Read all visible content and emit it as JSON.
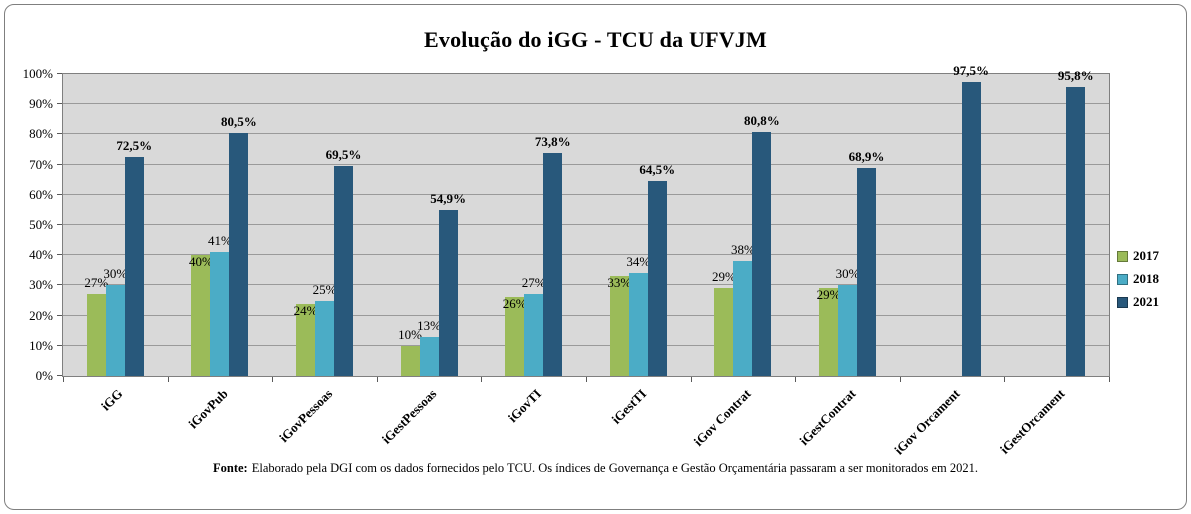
{
  "title": "Evolução do iGG - TCU da UFVJM",
  "footer": {
    "label": "Fonte:",
    "text": "Elaborado pela DGI com os dados fornecidos pelo TCU. Os índices de Governança e Gestão Orçamentária passaram a ser monitorados em 2021."
  },
  "colors": {
    "series_2017": "#9BBB59",
    "series_2018": "#4BACC6",
    "series_2021": "#28587B",
    "plot_bg": "#D9D9D9",
    "gridline": "#9A9A9A",
    "frame_border": "#7F7F7F"
  },
  "chart_data": {
    "type": "bar",
    "title": "Evolução do iGG - TCU da UFVJM",
    "categories": [
      "iGG",
      "iGovPub",
      "iGovPessoas",
      "iGestPessoas",
      "iGovTI",
      "iGestTI",
      "iGov Contrat",
      "iGestContrat",
      "iGov Orcament",
      "iGestOrcament"
    ],
    "series": [
      {
        "name": "2017",
        "color": "#9BBB59",
        "values": [
          27,
          40,
          24,
          10,
          26,
          33,
          29,
          29,
          null,
          null
        ],
        "labels": [
          "27%",
          "40%",
          "24%",
          "10%",
          "26%",
          "33%",
          "29%",
          "29%",
          "",
          ""
        ],
        "bold_labels": false
      },
      {
        "name": "2018",
        "color": "#4BACC6",
        "values": [
          30,
          41,
          25,
          13,
          27,
          34,
          38,
          30,
          null,
          null
        ],
        "labels": [
          "30%",
          "41%",
          "25%",
          "13%",
          "27%",
          "34%",
          "38%",
          "30%",
          "",
          ""
        ],
        "bold_labels": false
      },
      {
        "name": "2021",
        "color": "#28587B",
        "values": [
          72.5,
          80.5,
          69.5,
          54.9,
          73.8,
          64.5,
          80.8,
          68.9,
          97.5,
          95.8
        ],
        "labels": [
          "72,5%",
          "80,5%",
          "69,5%",
          "54,9%",
          "73,8%",
          "64,5%",
          "80,8%",
          "68,9%",
          "97,5%",
          "95,8%"
        ],
        "bold_labels": true
      }
    ],
    "ylim": [
      0,
      100
    ],
    "ytick_step": 10,
    "ytick_labels": [
      "0%",
      "10%",
      "20%",
      "30%",
      "40%",
      "50%",
      "60%",
      "70%",
      "80%",
      "90%",
      "100%"
    ],
    "grid": true,
    "legend_position": "right"
  }
}
